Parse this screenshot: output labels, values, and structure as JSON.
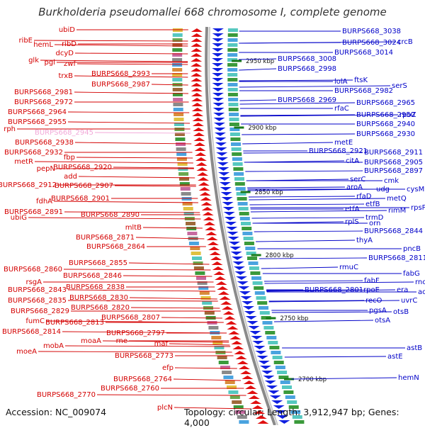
{
  "title": "Burkholderia pseudomallei 668 chromosome I, complete genome",
  "footer": {
    "accession": "Accession: NC_009074",
    "summary": "Topology: circular; Length: 3,912,947 bp; Genes: 4,000"
  },
  "colors": {
    "forward_label": "#d40000",
    "reverse_label": "#0000c8",
    "highlight_label": "#f2a8d8",
    "backbone": "#8a8a8a",
    "tick": "#1a7a1a"
  },
  "kbp_marks": [
    "2950 kbp",
    "2900 kbp",
    "2850 kbp",
    "2800 kbp",
    "2750 kbp",
    "2700 kbp"
  ],
  "left_labels": [
    "ubiD",
    "ribE",
    "hemL",
    "ribD",
    "dcyD",
    "glk",
    "pgl",
    "zwf",
    "trxB",
    "BURPS668_2993",
    "BURPS668_2987",
    "BURPS668_2981",
    "BURPS668_2972",
    "BURPS668_2964",
    "BURPS668_2955",
    "rph",
    "BURPS668_2945",
    "BURPS668_2938",
    "BURPS668_2932",
    "fbp",
    "metR",
    "pepN",
    "BURPS668_2920",
    "add",
    "BURPS668_2912",
    "BURPS668_2907",
    "fdhA",
    "BURPS668_2901",
    "BURPS668_2891",
    "ubiG",
    "BURPS668_2890",
    "mltB",
    "BURPS668_2871",
    "BURPS668_2864",
    "BURPS668_2860",
    "BURPS668_2855",
    "rsgA",
    "BURPS668_2846",
    "BURPS668_2843",
    "BURPS668_2838",
    "BURPS668_2835",
    "BURPS668_2830",
    "BURPS668_2829",
    "BURPS668_2820",
    "fumC",
    "BURPS668_2813",
    "BURPS668_2807",
    "BURPS668_2814",
    "BURPS668_2797",
    "mobA",
    "moaA",
    "rne",
    "moeA",
    "maf",
    "BURPS668_2773",
    "efp",
    "BURPS668_2764",
    "BURPS668_2760",
    "BURPS668_2770",
    "plcN"
  ],
  "right_labels": [
    "BURPS668_3038",
    "BURPS668_3024",
    "crcB",
    "BURPS668_3014",
    "BURPS668_3008",
    "BURPS668_2998",
    "lolA",
    "ftsK",
    "serS",
    "BURPS668_2982",
    "BURPS668_2969",
    "BURPS668_2965",
    "rfaC",
    "BURPS668_2950",
    "rpoZ",
    "BURPS668_2940",
    "BURPS668_2930",
    "metE",
    "BURPS668_2921",
    "BURPS668_2911",
    "citA",
    "BURPS668_2905",
    "BURPS668_2897",
    "serC",
    "cmk",
    "aroA",
    "udg",
    "cysM",
    "rfaD",
    "metQ",
    "etfA",
    "etfB",
    "rimM",
    "rpsP",
    "trmD",
    "rplS",
    "orn",
    "BURPS668_2844",
    "thyA",
    "pncB",
    "BURPS668_2811",
    "rmuC",
    "fabG",
    "fabF",
    "rnc",
    "BURPS668_2801",
    "rpoE",
    "era",
    "acpS",
    "recO",
    "uvrC",
    "pgsA",
    "otsB",
    "otsA",
    "astB",
    "astE",
    "hemN"
  ]
}
